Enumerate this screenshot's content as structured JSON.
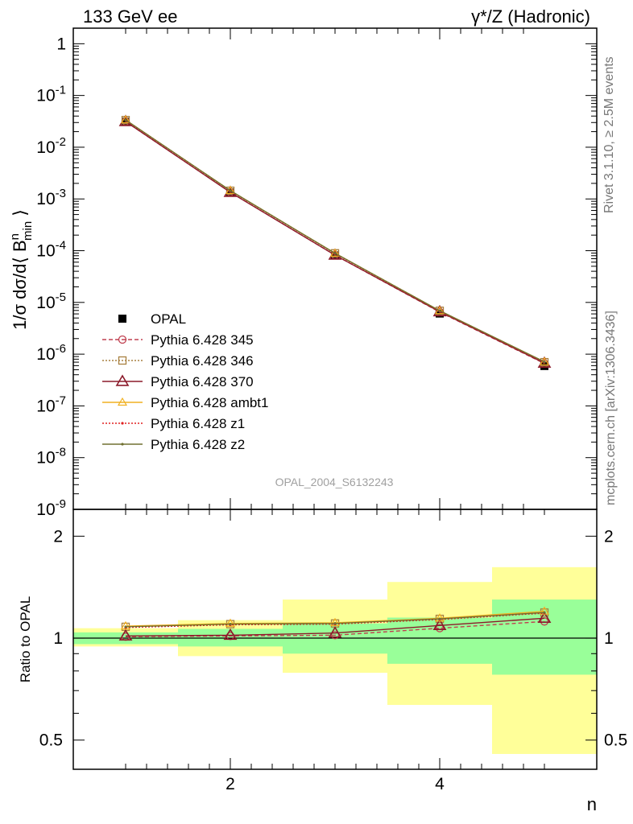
{
  "header": {
    "left_title": "133 GeV ee",
    "right_title": "γ*/Z (Hadronic)"
  },
  "side_labels": {
    "rivet": "Rivet 3.1.10, ≥ 2.5M events",
    "mcplots": "mcplots.cern.ch [arXiv:1306.3436]"
  },
  "analysis_id": "OPAL_2004_S6132243",
  "colors": {
    "data": "#000000",
    "p345": "#c04050",
    "p346": "#a88040",
    "p370": "#8b1a2a",
    "ambt1": "#f0b020",
    "z1": "#e02020",
    "z2": "#707030",
    "band_inner": "#99ff99",
    "band_outer": "#ffff99"
  },
  "chart_data": [
    {
      "type": "line",
      "panel": "main",
      "ylabel": "1/σ dσ/d⟨ B^n_min ⟩",
      "yscale": "log",
      "ylim": [
        1e-09,
        2
      ],
      "xlim": [
        0.5,
        5.5
      ],
      "x": [
        1,
        2,
        3,
        4,
        5
      ],
      "yticks": [
        "10^-9",
        "10^-8",
        "10^-7",
        "10^-6",
        "10^-5",
        "10^-4",
        "10^-3",
        "10^-2",
        "10^-1",
        "1"
      ],
      "legend_position": "lower-left",
      "series": [
        {
          "name": "OPAL",
          "key": "data",
          "marker": "filled-square",
          "values": [
            0.031,
            0.00133,
            8.1e-05,
            6.1e-06,
            5.9e-07
          ]
        },
        {
          "name": "Pythia 6.428 345",
          "key": "p345",
          "marker": "open-circle",
          "line": "dashed",
          "values": [
            0.0313,
            0.00135,
            8.2e-05,
            6.5e-06,
            6.6e-07
          ]
        },
        {
          "name": "Pythia 6.428 346",
          "key": "p346",
          "marker": "open-square",
          "line": "dotted",
          "values": [
            0.0335,
            0.00144,
            8.9e-05,
            6.9e-06,
            7e-07
          ]
        },
        {
          "name": "Pythia 6.428 370",
          "key": "p370",
          "marker": "open-triangle-large",
          "line": "solid",
          "values": [
            0.0314,
            0.00134,
            8.2e-05,
            6.6e-06,
            6.7e-07
          ]
        },
        {
          "name": "Pythia 6.428 ambt1",
          "key": "ambt1",
          "marker": "open-triangle",
          "line": "solid",
          "values": [
            0.0337,
            0.00145,
            8.9e-05,
            6.9e-06,
            7.1e-07
          ]
        },
        {
          "name": "Pythia 6.428 z1",
          "key": "z1",
          "marker": "dot",
          "line": "dotted",
          "values": [
            0.0334,
            0.00144,
            8.8e-05,
            6.8e-06,
            7e-07
          ]
        },
        {
          "name": "Pythia 6.428 z2",
          "key": "z2",
          "marker": "dot",
          "line": "solid",
          "values": [
            0.0336,
            0.00145,
            8.9e-05,
            6.9e-06,
            7.1e-07
          ]
        }
      ]
    },
    {
      "type": "line",
      "panel": "ratio",
      "ylabel": "Ratio to OPAL",
      "xlabel": "n",
      "yscale": "log",
      "ylim": [
        0.41,
        2.4
      ],
      "xlim": [
        0.5,
        5.5
      ],
      "xticks": [
        "2",
        "4"
      ],
      "yticks": [
        "0.5",
        "1",
        "2"
      ],
      "bins": [
        [
          0.5,
          1.5
        ],
        [
          1.5,
          2.5
        ],
        [
          2.5,
          3.5
        ],
        [
          3.5,
          4.5
        ],
        [
          4.5,
          5.5
        ]
      ],
      "band_inner": [
        [
          0.96,
          1.04
        ],
        [
          0.945,
          1.065
        ],
        [
          0.9,
          1.105
        ],
        [
          0.84,
          1.15
        ],
        [
          0.78,
          1.3
        ]
      ],
      "band_outer": [
        [
          0.945,
          1.07
        ],
        [
          0.885,
          1.13
        ],
        [
          0.79,
          1.3
        ],
        [
          0.635,
          1.465
        ],
        [
          0.455,
          1.62
        ]
      ],
      "x": [
        1,
        2,
        3,
        4,
        5
      ],
      "series": [
        {
          "name": "Pythia 6.428 345",
          "key": "p345",
          "values": [
            1.01,
            1.015,
            1.02,
            1.07,
            1.12
          ]
        },
        {
          "name": "Pythia 6.428 346",
          "key": "p346",
          "values": [
            1.08,
            1.1,
            1.105,
            1.14,
            1.19
          ]
        },
        {
          "name": "Pythia 6.428 370",
          "key": "p370",
          "values": [
            1.015,
            1.02,
            1.035,
            1.09,
            1.145
          ]
        },
        {
          "name": "Pythia 6.428 ambt1",
          "key": "ambt1",
          "values": [
            1.085,
            1.105,
            1.11,
            1.145,
            1.2
          ]
        },
        {
          "name": "Pythia 6.428 z1",
          "key": "z1",
          "values": [
            1.075,
            1.095,
            1.1,
            1.135,
            1.185
          ]
        },
        {
          "name": "Pythia 6.428 z2",
          "key": "z2",
          "values": [
            1.08,
            1.1,
            1.105,
            1.14,
            1.19
          ]
        }
      ]
    }
  ]
}
